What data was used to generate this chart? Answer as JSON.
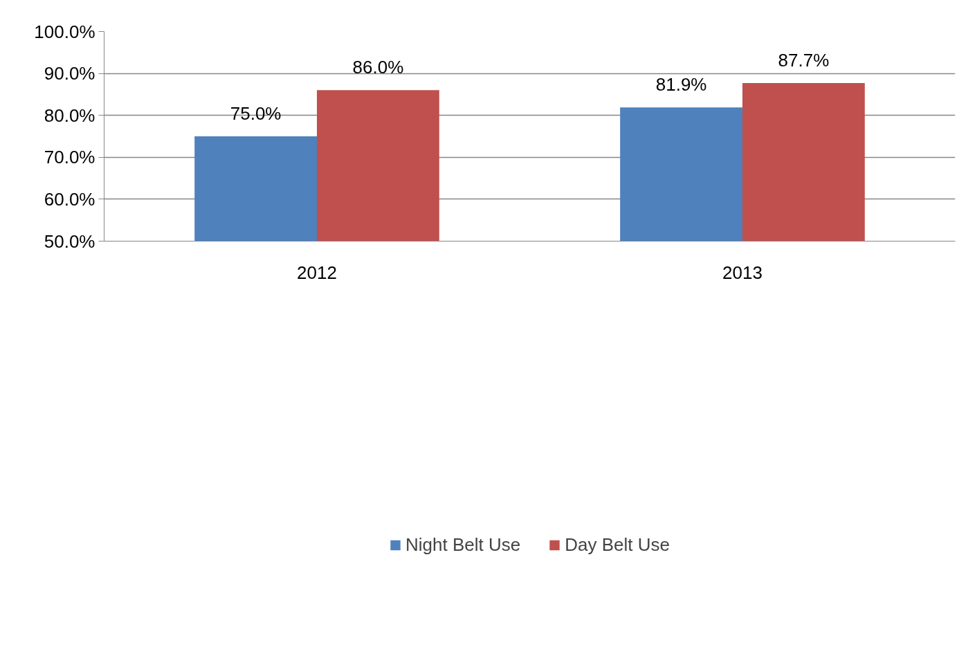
{
  "chart_data": {
    "type": "bar",
    "categories": [
      "2012",
      "2013"
    ],
    "series": [
      {
        "name": "Night Belt Use",
        "color": "#4f81bd",
        "values": [
          75.0,
          81.9
        ],
        "value_labels": [
          "75.0%",
          "81.9%"
        ]
      },
      {
        "name": "Day Belt Use",
        "color": "#c0504d",
        "values": [
          86.0,
          87.7
        ],
        "value_labels": [
          "86.0%",
          "87.7%"
        ]
      }
    ],
    "ylim": [
      50,
      100
    ],
    "yticks": [
      {
        "value": 50,
        "label": "50.0%"
      },
      {
        "value": 60,
        "label": "60.0%"
      },
      {
        "value": 70,
        "label": "70.0%"
      },
      {
        "value": 80,
        "label": "80.0%"
      },
      {
        "value": 90,
        "label": "90.0%"
      },
      {
        "value": 100,
        "label": "100.0%"
      }
    ],
    "grid": "y",
    "legend": "bottom"
  }
}
